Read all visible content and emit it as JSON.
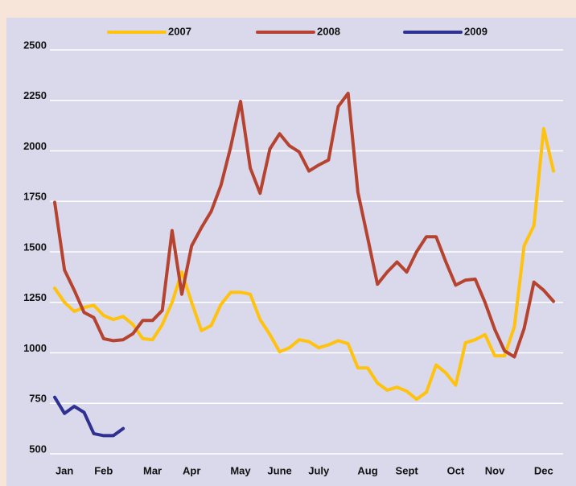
{
  "chart_data": {
    "type": "line",
    "categories": [
      null,
      "Jan",
      null,
      null,
      null,
      "Feb",
      null,
      null,
      null,
      null,
      "Mar",
      null,
      null,
      null,
      "Apr",
      null,
      null,
      null,
      null,
      "May",
      null,
      null,
      null,
      "June",
      null,
      null,
      null,
      "July",
      null,
      null,
      null,
      null,
      "Aug",
      null,
      null,
      null,
      "Sept",
      null,
      null,
      null,
      null,
      "Oct",
      null,
      null,
      null,
      "Nov",
      null,
      null,
      null,
      null,
      "Dec",
      null
    ],
    "series": [
      {
        "name": "2007",
        "color": "#ffc20e",
        "values": [
          1320,
          1250,
          1205,
          1225,
          1235,
          1185,
          1165,
          1180,
          1140,
          1070,
          1065,
          1140,
          1250,
          1400,
          1250,
          1110,
          1135,
          1240,
          1300,
          1300,
          1290,
          1165,
          1090,
          1005,
          1025,
          1065,
          1055,
          1025,
          1040,
          1060,
          1045,
          925,
          925,
          850,
          815,
          830,
          810,
          770,
          805,
          940,
          900,
          840,
          1050,
          1065,
          1090,
          985,
          985,
          1130,
          1530,
          1630,
          2110,
          1900
        ]
      },
      {
        "name": "2008",
        "color": "#b5432f",
        "values": [
          1745,
          1410,
          1310,
          1200,
          1175,
          1070,
          1060,
          1065,
          1095,
          1160,
          1160,
          1210,
          1605,
          1290,
          1530,
          1620,
          1700,
          1830,
          2020,
          2245,
          1915,
          1790,
          2010,
          2085,
          2025,
          1995,
          1900,
          1930,
          1955,
          2220,
          2285,
          1795,
          1570,
          1340,
          1400,
          1450,
          1400,
          1500,
          1575,
          1575,
          1450,
          1335,
          1360,
          1365,
          1250,
          1115,
          1010,
          980,
          1120,
          1350,
          1310,
          1255
        ]
      },
      {
        "name": "2009",
        "color": "#2e3192",
        "values": [
          780,
          700,
          735,
          705,
          600,
          590,
          590,
          625,
          null,
          null,
          null,
          null,
          null,
          null,
          null,
          null,
          null,
          null,
          null,
          null,
          null,
          null,
          null,
          null,
          null,
          null,
          null,
          null,
          null,
          null,
          null,
          null,
          null,
          null,
          null,
          null,
          null,
          null,
          null,
          null,
          null,
          null,
          null,
          null,
          null,
          null,
          null,
          null,
          null,
          null,
          null,
          null
        ]
      }
    ],
    "ylim": [
      500,
      2500
    ],
    "yticks": [
      500,
      750,
      1000,
      1250,
      1500,
      1750,
      2000,
      2250,
      2500
    ],
    "grid": true
  }
}
